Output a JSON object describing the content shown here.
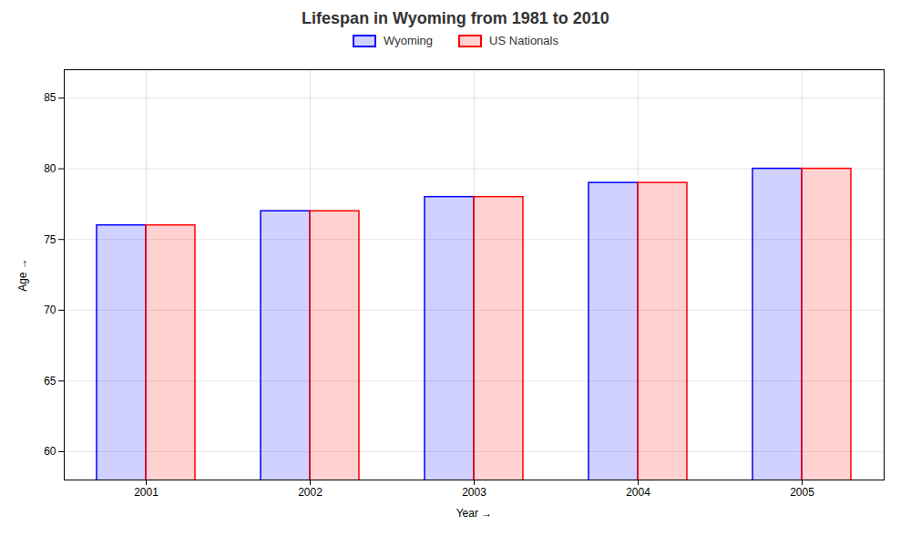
{
  "chart_data": {
    "type": "bar",
    "title": "Lifespan in Wyoming from 1981 to 2010",
    "xlabel": "Year",
    "ylabel": "Age",
    "categories": [
      "2001",
      "2002",
      "2003",
      "2004",
      "2005"
    ],
    "series": [
      {
        "name": "Wyoming",
        "color": "#0000ff",
        "values": [
          76,
          77,
          78,
          79,
          80
        ]
      },
      {
        "name": "US Nationals",
        "color": "#ff0000",
        "values": [
          76,
          77,
          78,
          79,
          80
        ]
      }
    ],
    "ylim": [
      58,
      87
    ],
    "yticks": [
      60,
      65,
      70,
      75,
      80,
      85
    ],
    "grid": true,
    "legend": "top"
  }
}
